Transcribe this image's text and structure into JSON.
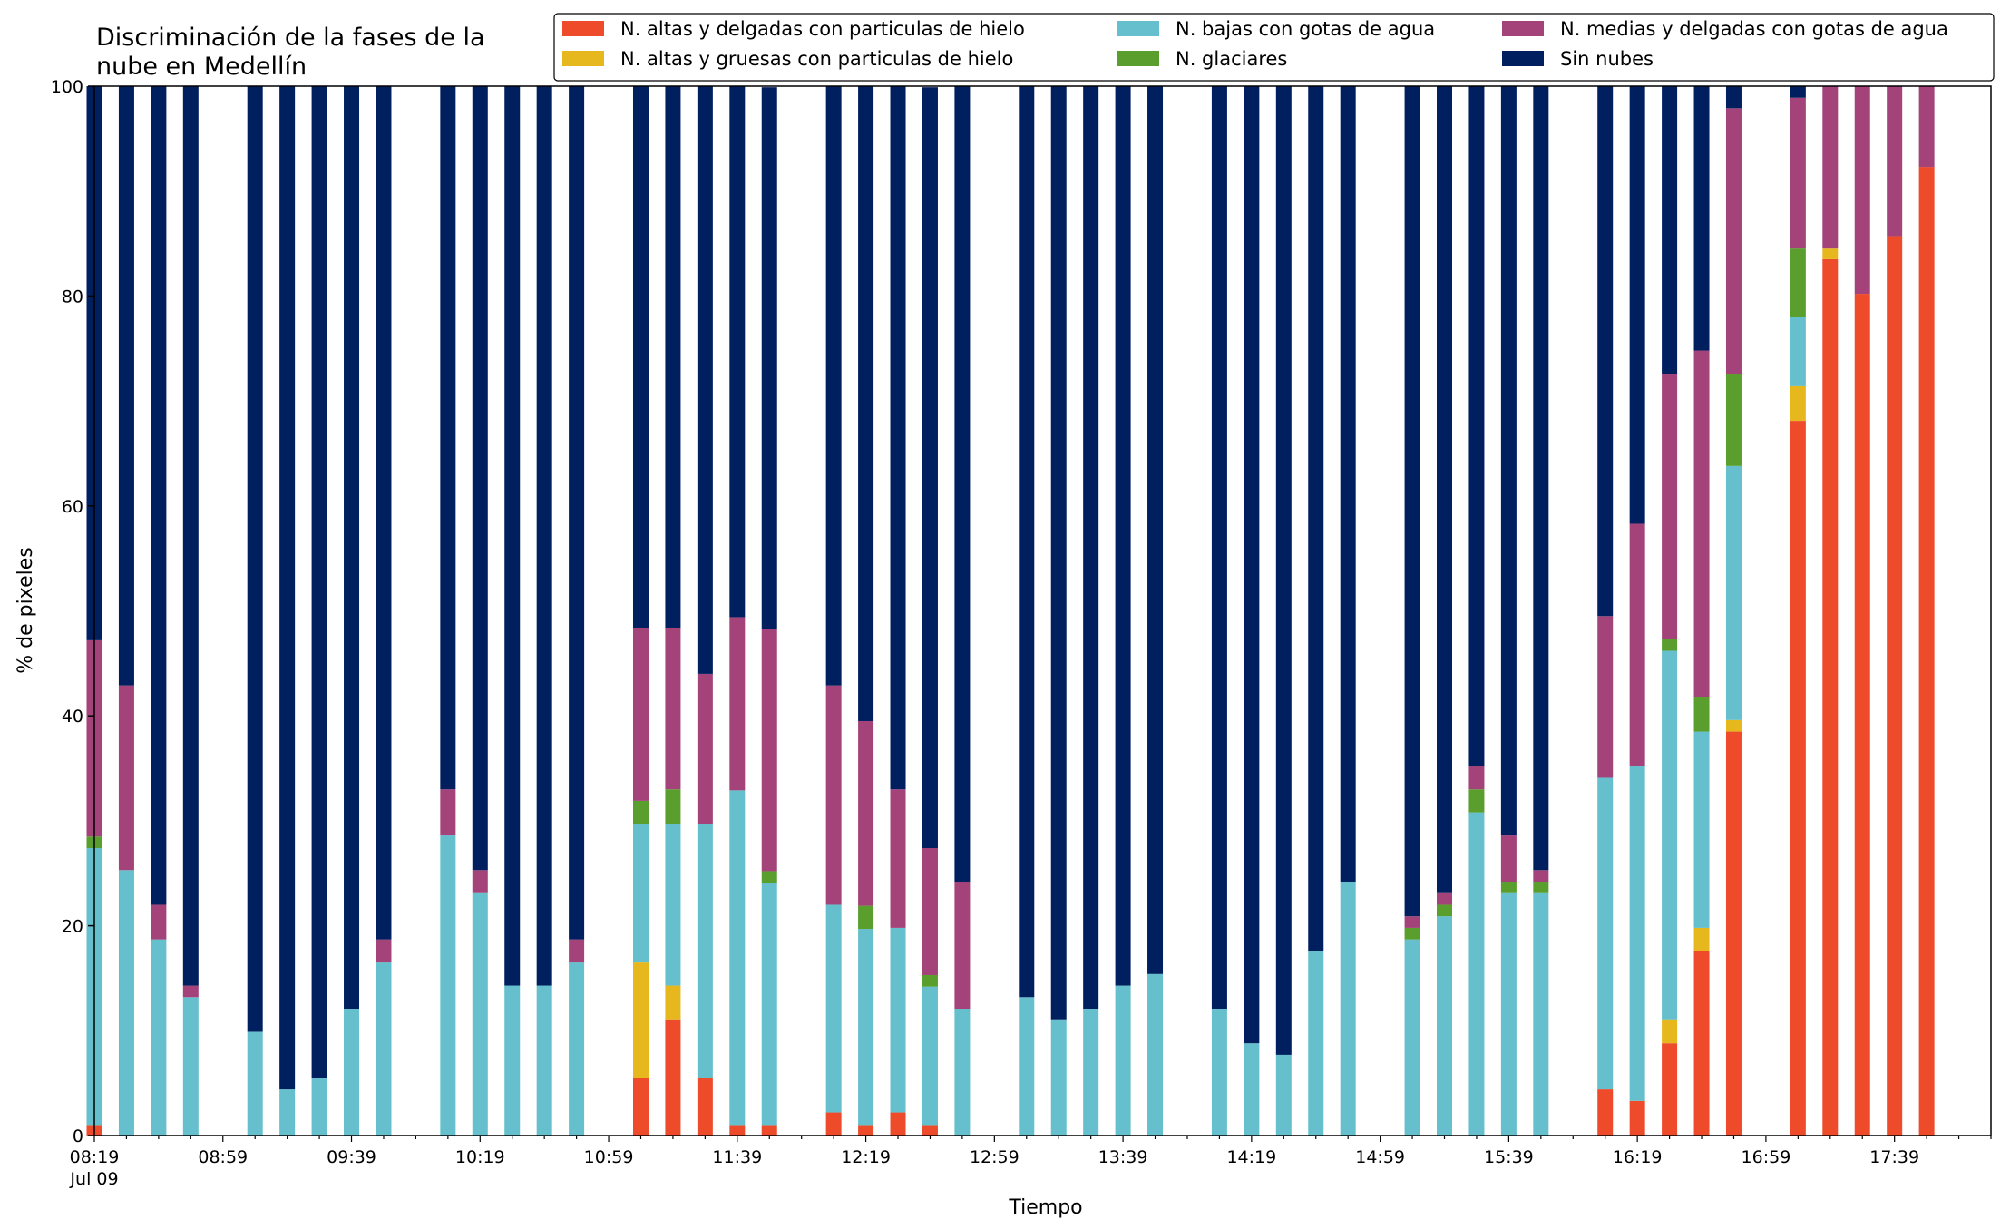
{
  "chart_data": {
    "type": "bar",
    "stacked": true,
    "title_lines": [
      "Discriminación de la fases de la",
      "nube en Medellín"
    ],
    "xlabel": "Tiempo",
    "ylabel": "% de pixeles",
    "ylim": [
      0,
      100
    ],
    "yticks": [
      0,
      20,
      40,
      60,
      80,
      100
    ],
    "xlim_minutes": [
      0,
      590
    ],
    "x_date_label": "Jul 09",
    "xtick_labels": [
      "08:19",
      "08:59",
      "09:39",
      "10:19",
      "10:59",
      "11:39",
      "12:19",
      "12:59",
      "13:39",
      "14:19",
      "14:59",
      "15:39",
      "16:19",
      "16:59",
      "17:39"
    ],
    "grid": false,
    "legend_position": "top-right",
    "x": [
      "08:19",
      "08:29",
      "08:39",
      "08:49",
      "09:09",
      "09:19",
      "09:29",
      "09:39",
      "09:49",
      "10:09",
      "10:19",
      "10:29",
      "10:39",
      "10:49",
      "11:09",
      "11:19",
      "11:29",
      "11:39",
      "11:49",
      "12:09",
      "12:19",
      "12:29",
      "12:39",
      "12:49",
      "13:09",
      "13:19",
      "13:29",
      "13:39",
      "13:49",
      "14:09",
      "14:19",
      "14:29",
      "14:39",
      "14:49",
      "15:09",
      "15:19",
      "15:29",
      "15:39",
      "15:49",
      "16:09",
      "16:19",
      "16:29",
      "16:39",
      "16:49",
      "17:09",
      "17:19",
      "17:29",
      "17:39",
      "17:49"
    ],
    "series": [
      {
        "name": "N. altas y delgadas con particulas de hielo",
        "color": "#ee4b2b",
        "values": [
          1,
          0,
          0,
          0,
          0,
          0,
          0,
          0,
          0,
          0,
          0,
          0,
          0,
          0,
          5.5,
          11,
          5.5,
          1,
          1,
          2.2,
          1,
          2.2,
          1,
          0,
          0,
          0,
          0,
          0,
          0,
          0,
          0,
          0,
          0,
          0,
          0,
          0,
          0,
          0,
          0,
          4.4,
          3.3,
          8.8,
          17.6,
          38.5,
          68.1,
          83.5,
          80.2,
          85.7,
          92.3
        ]
      },
      {
        "name": "N. altas y gruesas con particulas de hielo",
        "color": "#e6b81e",
        "values": [
          0,
          0,
          0,
          0,
          0,
          0,
          0,
          0,
          0,
          0,
          0,
          0,
          0,
          0,
          11,
          3.3,
          0,
          0,
          0,
          0,
          0,
          0,
          0,
          0,
          0,
          0,
          0,
          0,
          0,
          0,
          0,
          0,
          0,
          0,
          0,
          0,
          0,
          0,
          0,
          0,
          0,
          2.2,
          2.2,
          1.1,
          3.3,
          1.1,
          0,
          0,
          0
        ]
      },
      {
        "name": "N. bajas con gotas de agua",
        "color": "#65bfcc",
        "values": [
          26.4,
          25.3,
          18.7,
          13.2,
          9.9,
          4.4,
          5.5,
          12.1,
          16.5,
          28.6,
          23.1,
          14.3,
          14.3,
          16.5,
          13.2,
          15.4,
          24.2,
          31.9,
          23.1,
          19.8,
          18.7,
          17.6,
          13.2,
          12.1,
          13.2,
          11,
          12.1,
          14.3,
          15.4,
          12.1,
          8.8,
          7.7,
          17.6,
          24.2,
          18.7,
          20.9,
          30.8,
          23.1,
          23.1,
          29.7,
          31.9,
          35.2,
          18.7,
          24.2,
          6.6,
          0,
          0,
          0,
          0
        ]
      },
      {
        "name": "N. glaciares",
        "color": "#5a9e2e",
        "values": [
          1.1,
          0,
          0,
          0,
          0,
          0,
          0,
          0,
          0,
          0,
          0,
          0,
          0,
          0,
          2.2,
          3.3,
          0,
          0,
          1.1,
          0,
          2.2,
          0,
          1.1,
          0,
          0,
          0,
          0,
          0,
          0,
          0,
          0,
          0,
          0,
          0,
          1.1,
          1.1,
          2.2,
          1.1,
          1.1,
          0,
          0,
          1.1,
          3.3,
          8.8,
          6.6,
          0,
          0,
          0,
          0
        ]
      },
      {
        "name": "N. medias y delgadas con gotas de agua",
        "color": "#a3437a",
        "values": [
          18.7,
          17.6,
          3.3,
          1.1,
          0,
          0,
          0,
          0,
          2.2,
          4.4,
          2.2,
          0,
          0,
          2.2,
          16.5,
          15.4,
          14.3,
          16.5,
          23.1,
          20.9,
          17.6,
          13.2,
          12.1,
          12.1,
          0,
          0,
          0,
          0,
          0,
          0,
          0,
          0,
          0,
          0,
          1.1,
          1.1,
          2.2,
          4.4,
          1.1,
          15.4,
          23.1,
          25.3,
          33,
          25.3,
          14.3,
          15.4,
          19.8,
          14.3,
          7.7
        ]
      },
      {
        "name": "Sin nubes",
        "color": "#001f5f",
        "values": [
          52.8,
          57.1,
          78,
          85.7,
          90.1,
          95.6,
          94.5,
          87.9,
          81.3,
          67,
          74.7,
          85.7,
          85.7,
          81.3,
          51.6,
          51.6,
          56,
          50.6,
          51.6,
          57.1,
          60.5,
          67,
          72.5,
          75.8,
          86.8,
          89,
          87.9,
          85.7,
          84.6,
          87.9,
          91.2,
          92.3,
          82.4,
          75.8,
          79.1,
          76.9,
          64.8,
          71.4,
          74.7,
          50.5,
          41.7,
          27.4,
          25.2,
          2.1,
          1.1,
          0,
          0,
          0,
          0
        ]
      }
    ]
  }
}
